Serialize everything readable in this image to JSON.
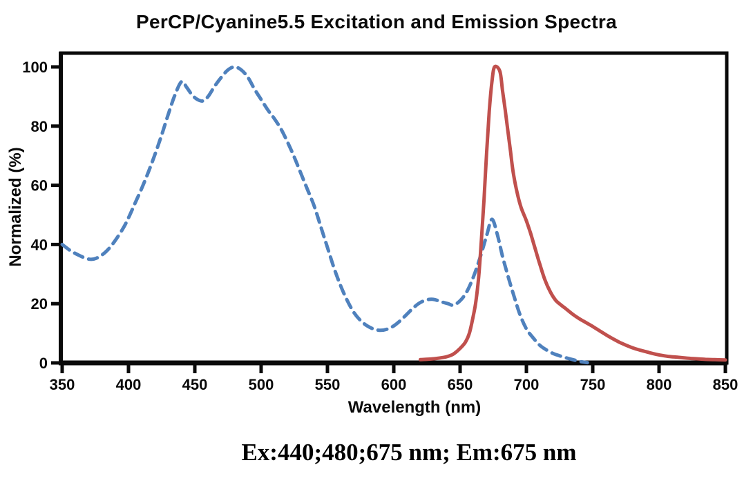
{
  "header": {
    "title": "PerCP/Cyanine5.5 Excitation and Emission Spectra"
  },
  "footer": {
    "caption": "Ex:440;480;675 nm; Em:675 nm"
  },
  "chart_data": {
    "type": "line",
    "title": "PerCP/Cyanine5.5 Excitation and Emission Spectra",
    "xlabel": "Wavelength (nm)",
    "ylabel": "Normalized (%)",
    "xlim": [
      350,
      850
    ],
    "ylim": [
      0,
      100
    ],
    "x_ticks": [
      350,
      400,
      450,
      500,
      550,
      600,
      650,
      700,
      750,
      800,
      850
    ],
    "y_ticks": [
      0,
      20,
      40,
      60,
      80,
      100
    ],
    "grid": false,
    "legend": "none",
    "frame": true,
    "axis_color": "#0a0a0a",
    "annotation": "Ex:440;480;675 nm; Em:675 nm",
    "series": [
      {
        "name": "Excitation",
        "line_style": "dashed",
        "color": "#4F81BD",
        "points": [
          [
            350,
            40
          ],
          [
            356,
            38
          ],
          [
            362,
            36.5
          ],
          [
            368,
            35.3
          ],
          [
            372,
            35
          ],
          [
            376,
            35.4
          ],
          [
            381,
            36.8
          ],
          [
            386,
            39
          ],
          [
            391,
            42
          ],
          [
            396,
            45.5
          ],
          [
            400,
            49
          ],
          [
            405,
            54
          ],
          [
            410,
            59
          ],
          [
            415,
            64.5
          ],
          [
            420,
            70.5
          ],
          [
            425,
            77
          ],
          [
            430,
            84
          ],
          [
            435,
            90.5
          ],
          [
            440,
            95
          ],
          [
            444,
            93
          ],
          [
            448,
            90.5
          ],
          [
            452,
            89
          ],
          [
            456,
            88.5
          ],
          [
            460,
            90
          ],
          [
            465,
            93.5
          ],
          [
            470,
            96.5
          ],
          [
            475,
            99
          ],
          [
            480,
            100
          ],
          [
            485,
            99
          ],
          [
            490,
            96.5
          ],
          [
            495,
            92.5
          ],
          [
            500,
            89
          ],
          [
            505,
            85.5
          ],
          [
            510,
            82.5
          ],
          [
            515,
            79
          ],
          [
            520,
            74.5
          ],
          [
            525,
            69.5
          ],
          [
            530,
            64
          ],
          [
            535,
            58.5
          ],
          [
            540,
            53
          ],
          [
            545,
            46
          ],
          [
            550,
            39
          ],
          [
            555,
            32
          ],
          [
            560,
            26
          ],
          [
            565,
            21
          ],
          [
            570,
            17
          ],
          [
            575,
            14.3
          ],
          [
            580,
            12.5
          ],
          [
            585,
            11.4
          ],
          [
            590,
            11
          ],
          [
            595,
            11.4
          ],
          [
            600,
            12.5
          ],
          [
            605,
            14.3
          ],
          [
            610,
            16.5
          ],
          [
            615,
            18.7
          ],
          [
            620,
            20.4
          ],
          [
            625,
            21.3
          ],
          [
            629,
            21.5
          ],
          [
            633,
            21.1
          ],
          [
            637,
            20.5
          ],
          [
            641,
            20
          ],
          [
            645,
            19.5
          ],
          [
            650,
            21
          ],
          [
            655,
            24
          ],
          [
            660,
            29
          ],
          [
            665,
            35.5
          ],
          [
            670,
            43
          ],
          [
            674,
            48.5
          ],
          [
            678,
            43.5
          ],
          [
            682,
            36
          ],
          [
            686,
            29.5
          ],
          [
            690,
            23.5
          ],
          [
            695,
            16.5
          ],
          [
            700,
            11.5
          ],
          [
            705,
            8.5
          ],
          [
            710,
            6
          ],
          [
            715,
            4.4
          ],
          [
            720,
            3.2
          ],
          [
            725,
            2.4
          ],
          [
            730,
            1.7
          ],
          [
            735,
            1.1
          ],
          [
            740,
            0.5
          ],
          [
            746,
            0.1
          ]
        ]
      },
      {
        "name": "Emission",
        "line_style": "solid",
        "color": "#C0504D",
        "points": [
          [
            620,
            1.1
          ],
          [
            628,
            1.3
          ],
          [
            634,
            1.6
          ],
          [
            640,
            2.1
          ],
          [
            645,
            3
          ],
          [
            650,
            4.9
          ],
          [
            654,
            7
          ],
          [
            657,
            10
          ],
          [
            660,
            16
          ],
          [
            662,
            21
          ],
          [
            664,
            29
          ],
          [
            666,
            41
          ],
          [
            668,
            55
          ],
          [
            670,
            71
          ],
          [
            672,
            85
          ],
          [
            674,
            95
          ],
          [
            676,
            100
          ],
          [
            680,
            98.5
          ],
          [
            682,
            92
          ],
          [
            684,
            85.5
          ],
          [
            686,
            78.5
          ],
          [
            688,
            71.5
          ],
          [
            690,
            64.5
          ],
          [
            693,
            57.5
          ],
          [
            696,
            52.5
          ],
          [
            700,
            48
          ],
          [
            703,
            44
          ],
          [
            706,
            39.5
          ],
          [
            710,
            33.5
          ],
          [
            714,
            28
          ],
          [
            718,
            24
          ],
          [
            722,
            21.2
          ],
          [
            726,
            19.6
          ],
          [
            730,
            18.2
          ],
          [
            735,
            16.4
          ],
          [
            740,
            14.9
          ],
          [
            745,
            13.6
          ],
          [
            750,
            12.3
          ],
          [
            755,
            10.9
          ],
          [
            760,
            9.5
          ],
          [
            765,
            8.2
          ],
          [
            770,
            7
          ],
          [
            775,
            6
          ],
          [
            780,
            5.1
          ],
          [
            785,
            4.4
          ],
          [
            790,
            3.8
          ],
          [
            795,
            3.2
          ],
          [
            800,
            2.7
          ],
          [
            807,
            2.2
          ],
          [
            814,
            1.9
          ],
          [
            821,
            1.6
          ],
          [
            828,
            1.4
          ],
          [
            835,
            1.2
          ],
          [
            842,
            1.1
          ],
          [
            850,
            1
          ]
        ]
      }
    ]
  }
}
